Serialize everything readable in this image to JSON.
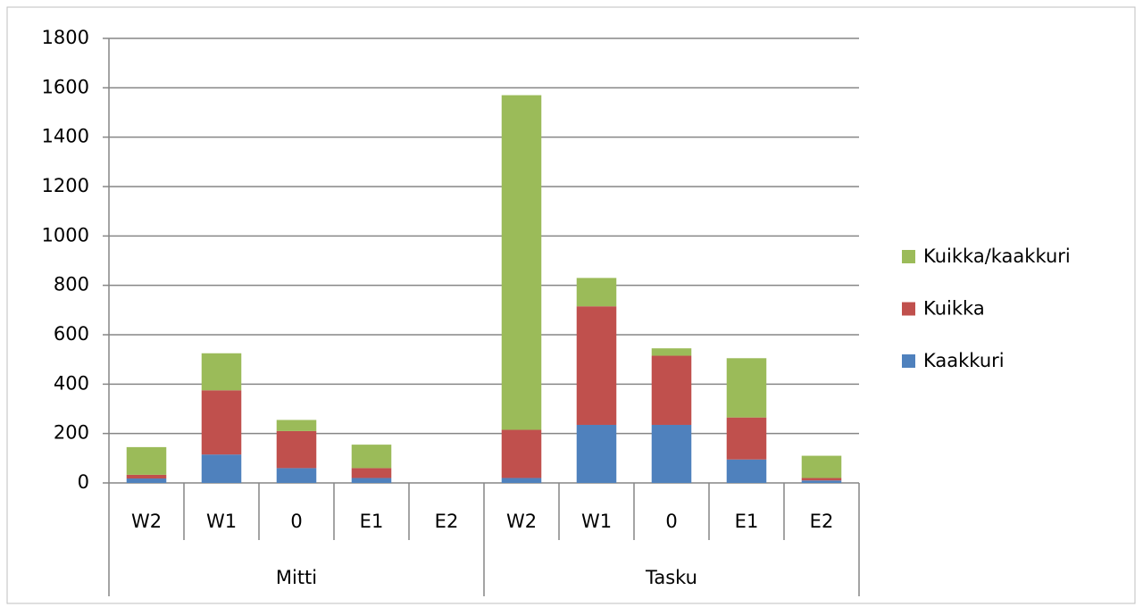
{
  "chart_data": {
    "type": "stacked_bar",
    "categories": [
      "W2",
      "W1",
      "0",
      "E1",
      "E2",
      "W2",
      "W1",
      "0",
      "E1",
      "E2"
    ],
    "groups": [
      "Mitti",
      "Tasku"
    ],
    "series": [
      {
        "name": "Kaakkuri",
        "color": "#4f81bd",
        "values": [
          18,
          115,
          60,
          20,
          0,
          20,
          235,
          235,
          95,
          10
        ]
      },
      {
        "name": "Kuikka",
        "color": "#c0504d",
        "values": [
          15,
          260,
          150,
          40,
          0,
          195,
          480,
          280,
          170,
          10
        ]
      },
      {
        "name": "Kuikka/kaakkuri",
        "color": "#9bbb59",
        "values": [
          112,
          150,
          45,
          95,
          0,
          1355,
          115,
          30,
          240,
          90
        ]
      }
    ],
    "ylim": [
      0,
      1800
    ],
    "yticks": [
      0,
      200,
      400,
      600,
      800,
      1000,
      1200,
      1400,
      1600,
      1800
    ],
    "grid": true,
    "legend": "right"
  }
}
